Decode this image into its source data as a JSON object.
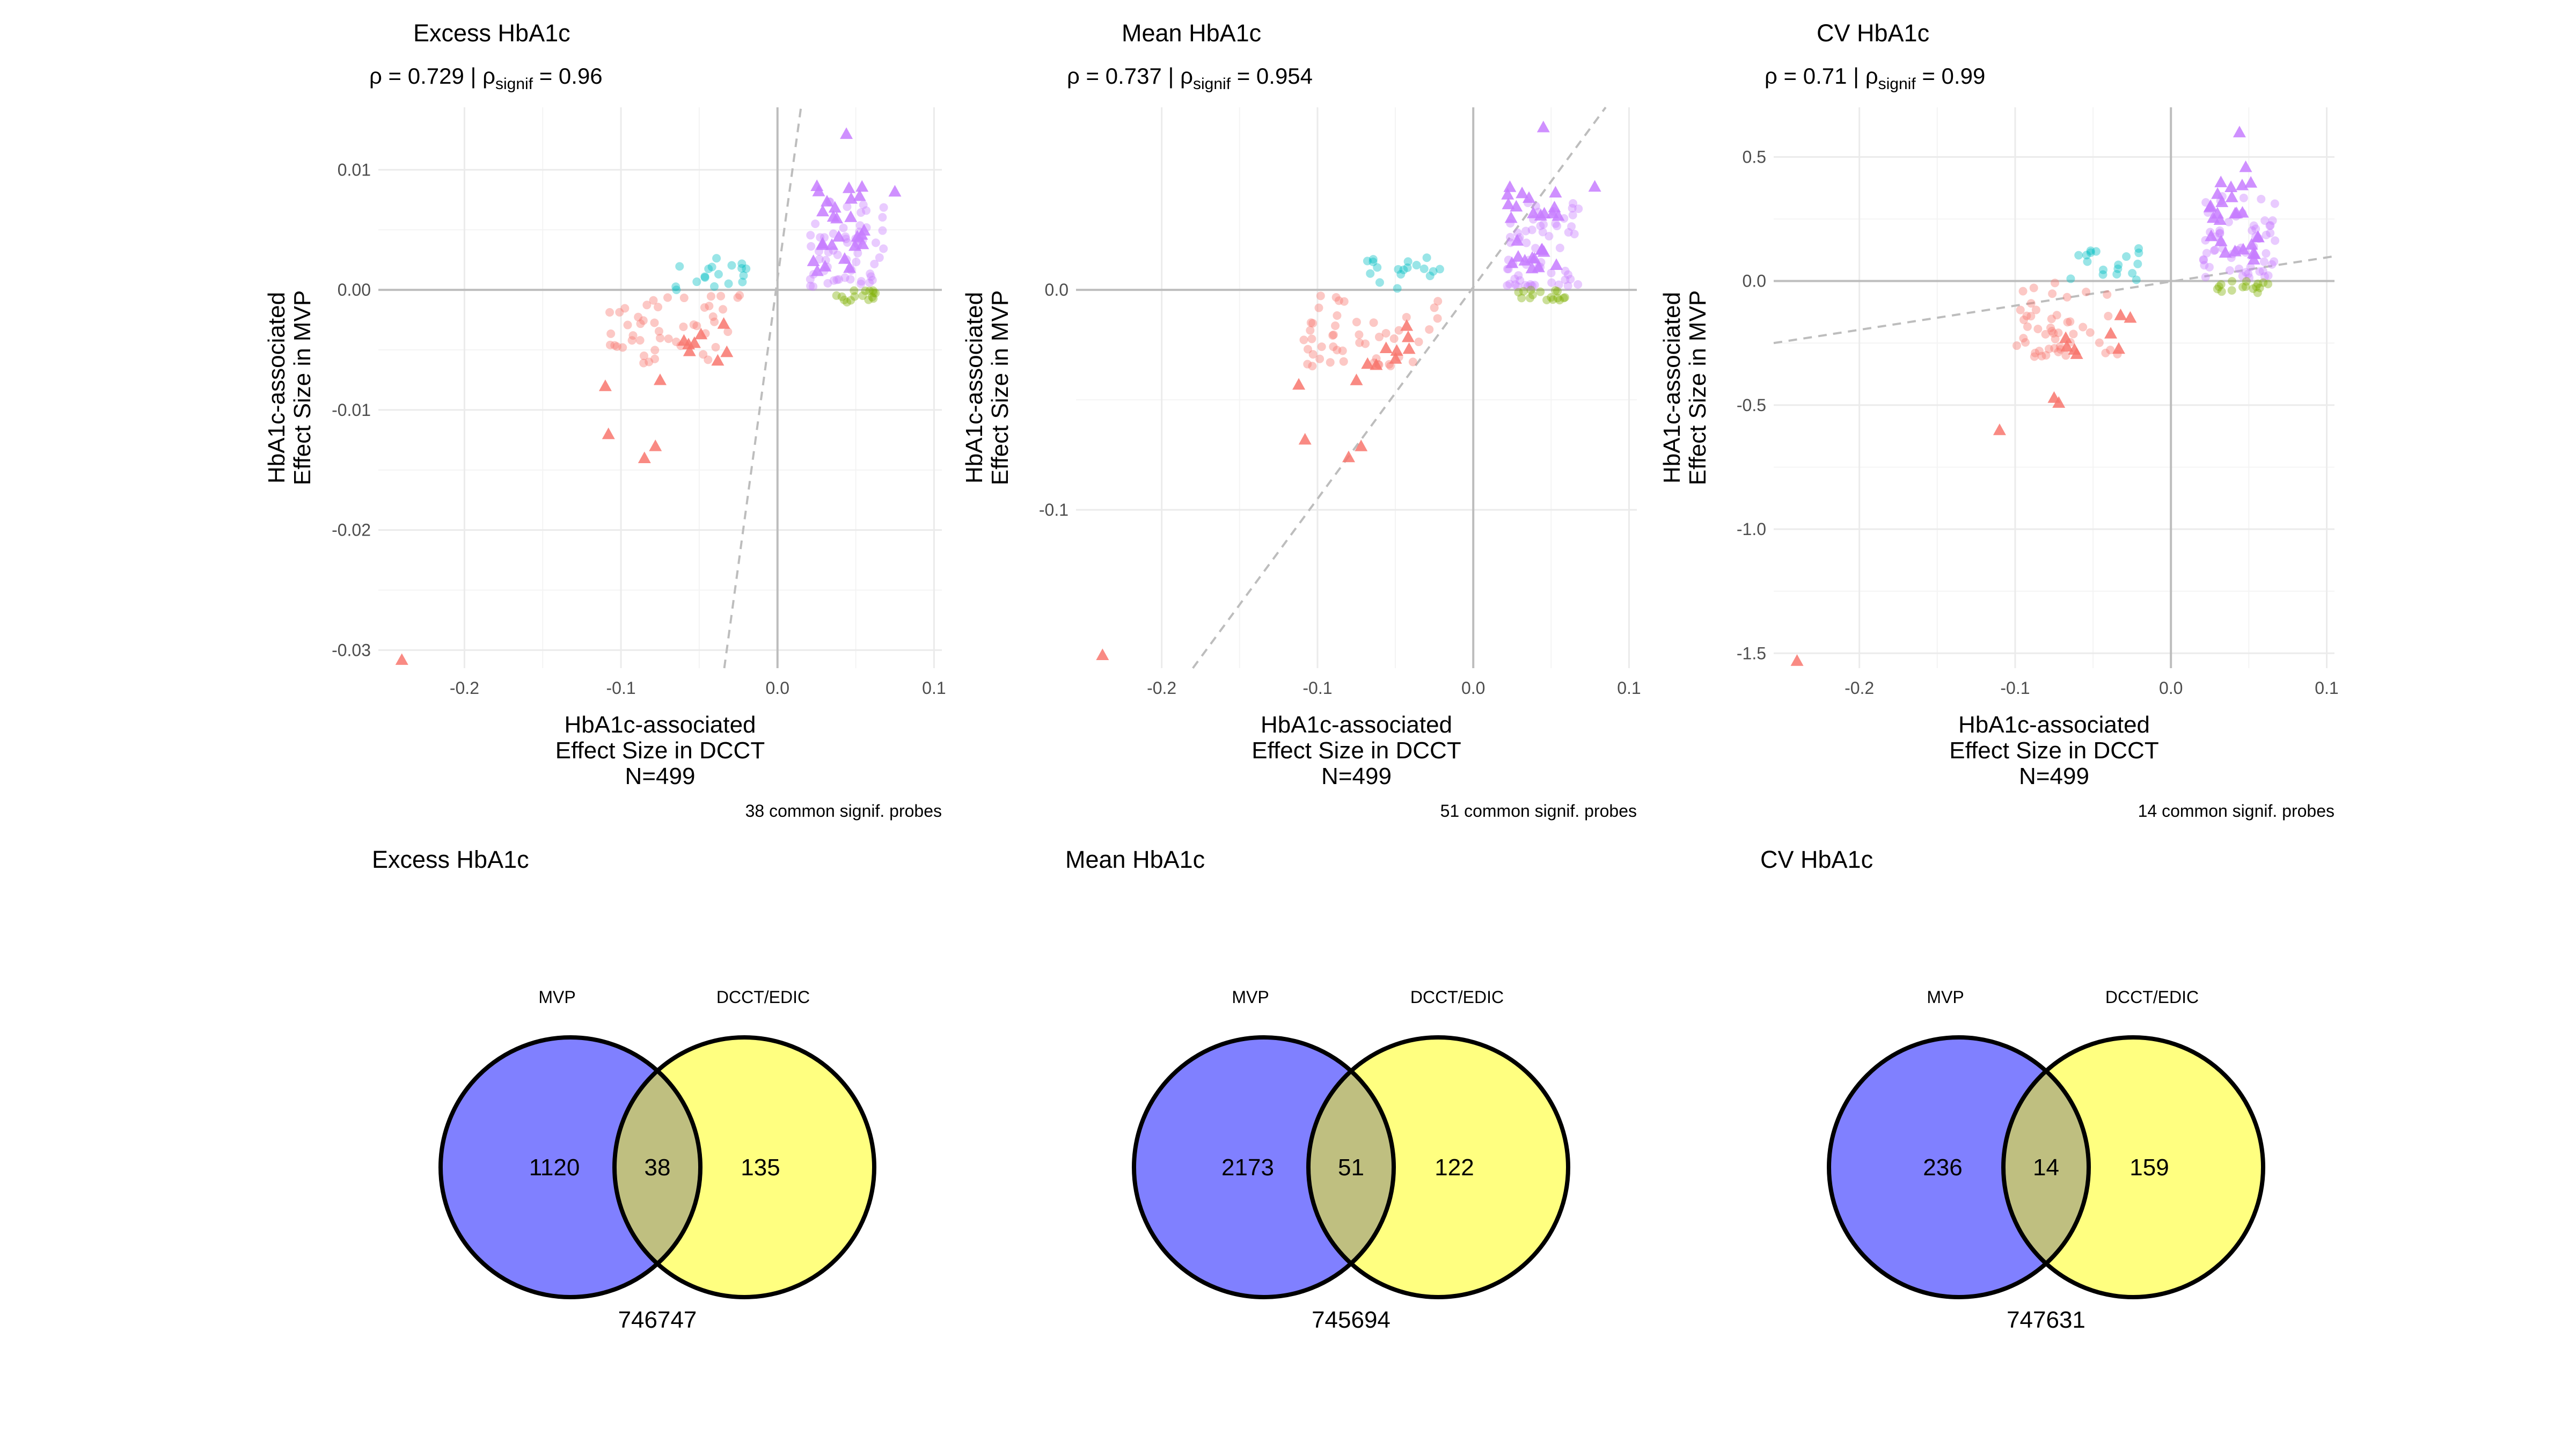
{
  "chart_data": [
    {
      "type": "scatter",
      "title": "Excess HbA1c",
      "rho_prefix": "ρ = 0.729 | ρ",
      "rho_sub": "signif",
      "rho_suffix": " = 0.96",
      "xlabel": [
        "HbA1c-associated",
        "Effect Size in DCCT",
        "N=499"
      ],
      "ylabel": [
        "HbA1c-associated",
        "Effect Size in MVP"
      ],
      "caption": "38 common signif. probes",
      "xlim": [
        -0.255,
        0.105
      ],
      "ylim": [
        -0.0315,
        0.0152
      ],
      "xticks": [
        -0.2,
        -0.1,
        0.0,
        0.1
      ],
      "xticklabels": [
        "-0.2",
        "-0.1",
        "0.0",
        "0.1"
      ],
      "yticks": [
        -0.03,
        -0.02,
        -0.01,
        0.0,
        0.01
      ],
      "yticklabels": [
        "-0.03",
        "-0.02",
        "-0.01",
        "0.00",
        "0.01"
      ],
      "ymax_scale": 0.013,
      "yneg_scale": 0.006,
      "xneg_min": -0.11,
      "fit_line": [
        [
          -0.034,
          -0.0315
        ],
        [
          0.015,
          0.0152
        ]
      ],
      "outlier_triangles": [
        [
          -0.24,
          -0.0308
        ],
        [
          -0.11,
          -0.008
        ],
        [
          -0.108,
          -0.012
        ],
        [
          -0.085,
          -0.014
        ],
        [
          -0.078,
          -0.013
        ],
        [
          -0.075,
          -0.0075
        ]
      ],
      "top_triangles": [
        [
          0.044,
          0.013
        ],
        [
          0.075,
          0.0082
        ]
      ],
      "seed": 11
    },
    {
      "type": "scatter",
      "title": "Mean HbA1c",
      "rho_prefix": "ρ = 0.737 | ρ",
      "rho_sub": "signif",
      "rho_suffix": " = 0.954",
      "xlabel": [
        "HbA1c-associated",
        "Effect Size in DCCT",
        "N=499"
      ],
      "ylabel": [
        "HbA1c-associated",
        "Effect Size in MVP"
      ],
      "caption": "51 common signif. probes",
      "xlim": [
        -0.255,
        0.105
      ],
      "ylim": [
        -0.172,
        0.083
      ],
      "xticks": [
        -0.2,
        -0.1,
        0.0,
        0.1
      ],
      "xticklabels": [
        "-0.2",
        "-0.1",
        "0.0",
        "0.1"
      ],
      "yticks": [
        -0.1,
        0.0
      ],
      "yticklabels": [
        "-0.1",
        "0.0"
      ],
      "ymax_scale": 0.07,
      "yneg_scale": 0.035,
      "xneg_min": -0.11,
      "fit_line": [
        [
          -0.18,
          -0.172
        ],
        [
          0.085,
          0.083
        ]
      ],
      "outlier_triangles": [
        [
          -0.238,
          -0.166
        ],
        [
          -0.112,
          -0.043
        ],
        [
          -0.108,
          -0.068
        ],
        [
          -0.08,
          -0.076
        ],
        [
          -0.072,
          -0.071
        ],
        [
          -0.075,
          -0.041
        ]
      ],
      "top_triangles": [
        [
          0.045,
          0.074
        ],
        [
          0.078,
          0.047
        ]
      ],
      "seed": 23
    },
    {
      "type": "scatter",
      "title": "CV HbA1c",
      "rho_prefix": "ρ = 0.71 | ρ",
      "rho_sub": "signif",
      "rho_suffix": " = 0.99",
      "xlabel": [
        "HbA1c-associated",
        "Effect Size in DCCT",
        "N=499"
      ],
      "ylabel": [
        "HbA1c-associated",
        "Effect Size in MVP"
      ],
      "caption": "14 common signif. probes",
      "xlim": [
        -0.255,
        0.105
      ],
      "ylim": [
        -1.56,
        0.7
      ],
      "xticks": [
        -0.2,
        -0.1,
        0.0,
        0.1
      ],
      "xticklabels": [
        "-0.2",
        "-0.1",
        "0.0",
        "0.1"
      ],
      "yticks": [
        -1.5,
        -1.0,
        -0.5,
        0.0,
        0.5
      ],
      "yticklabels": [
        "-1.5",
        "-1.0",
        "-0.5",
        "0.0",
        "0.5"
      ],
      "ymax_scale": 0.6,
      "yneg_scale": 0.3,
      "xneg_min": -0.1,
      "fit_line": [
        [
          -0.255,
          -0.25
        ],
        [
          0.105,
          0.1
        ]
      ],
      "outlier_triangles": [
        [
          -0.24,
          -1.53
        ],
        [
          -0.11,
          -0.6
        ],
        [
          -0.075,
          -0.47
        ],
        [
          -0.072,
          -0.49
        ]
      ],
      "top_triangles": [
        [
          0.044,
          0.6
        ],
        [
          0.048,
          0.46
        ]
      ],
      "seed": 37
    }
  ],
  "colors": {
    "red": "#F8766D",
    "cyan": "#00BFC4",
    "purple": "#C77CFF",
    "green": "#7CAE00",
    "venn_left": "#8080FF",
    "venn_right": "#FFFF80",
    "venn_overlap": "#BFBF80",
    "grid_major": "#EBEBEB",
    "grid_minor": "#F4F4F4",
    "zero_line": "#BDBDBD",
    "fit_line": "#BDBDBD"
  },
  "venns": [
    {
      "title": "Excess HbA1c",
      "left_label": "MVP",
      "right_label": "DCCT/EDIC",
      "left_only": "1120",
      "overlap": "38",
      "right_only": "135",
      "outside": "746747"
    },
    {
      "title": "Mean HbA1c",
      "left_label": "MVP",
      "right_label": "DCCT/EDIC",
      "left_only": "2173",
      "overlap": "51",
      "right_only": "122",
      "outside": "745694"
    },
    {
      "title": "CV HbA1c",
      "left_label": "MVP",
      "right_label": "DCCT/EDIC",
      "left_only": "236",
      "overlap": "14",
      "right_only": "159",
      "outside": "747631"
    }
  ]
}
